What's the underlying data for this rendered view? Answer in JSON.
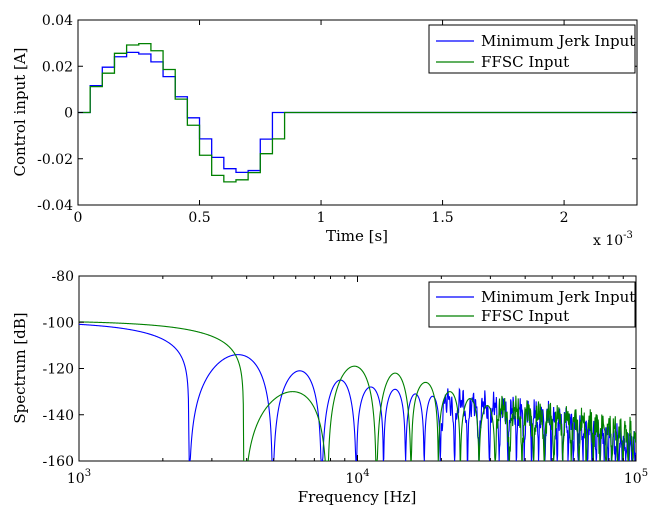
{
  "chart_data": [
    {
      "type": "line",
      "title": "",
      "xlabel": "Time [s]",
      "ylabel": "Control input [A]",
      "x_multiplier_label": "x 10",
      "x_multiplier_exponent": "-3",
      "xlim": [
        0,
        2.3
      ],
      "ylim": [
        -0.04,
        0.04
      ],
      "xticks": [
        0,
        0.5,
        1,
        1.5,
        2
      ],
      "xtick_labels": [
        "0",
        "0.5",
        "1",
        "1.5",
        "2"
      ],
      "yticks": [
        -0.04,
        -0.02,
        0,
        0.02,
        0.04
      ],
      "ytick_labels": [
        "-0.04",
        "-0.02",
        "0",
        "0.02",
        "0.04"
      ],
      "grid": false,
      "legend_position": "top-right",
      "step_width": 0.05,
      "series": [
        {
          "name": "Minimum Jerk Input",
          "color": "#0000ff",
          "step_values": [
            0.0,
            0.0116,
            0.0196,
            0.0241,
            0.026,
            0.0253,
            0.0219,
            0.0155,
            0.0068,
            -0.0023,
            -0.0114,
            -0.0194,
            -0.0243,
            -0.0259,
            -0.0251,
            -0.0115,
            0.0
          ],
          "end_x": 2.3
        },
        {
          "name": "FFSC Input",
          "color": "#008000",
          "step_values": [
            0.0,
            0.0112,
            0.017,
            0.0256,
            0.0292,
            0.0298,
            0.0267,
            0.0186,
            0.0058,
            -0.0055,
            -0.0185,
            -0.0272,
            -0.03,
            -0.0291,
            -0.026,
            -0.0178,
            -0.0114,
            0.0
          ],
          "end_x": 2.3
        }
      ]
    },
    {
      "type": "line",
      "title": "",
      "xlabel": "Frequency [Hz]",
      "ylabel": "Spectrum [dB]",
      "xscale": "log",
      "xlim": [
        1000,
        100000
      ],
      "ylim": [
        -160,
        -80
      ],
      "xticks": [
        1000,
        10000,
        100000
      ],
      "xtick_labels": [
        {
          "base": "10",
          "exponent": "3"
        },
        {
          "base": "10",
          "exponent": "4"
        },
        {
          "base": "10",
          "exponent": "5"
        }
      ],
      "yticks": [
        -160,
        -140,
        -120,
        -100,
        -80
      ],
      "ytick_labels": [
        "-160",
        "-140",
        "-120",
        "-100",
        "-80"
      ],
      "grid": false,
      "legend_position": "top-right",
      "series": [
        {
          "name": "Minimum Jerk Input",
          "color": "#0000ff",
          "base_level_db": -99.5,
          "first_null_hz": 2480,
          "lobe_peaks_db": [
            -114,
            -121,
            -125,
            -128,
            -129,
            -131,
            -132,
            -133
          ]
        },
        {
          "name": "FFSC Input",
          "color": "#008000",
          "base_level_db": -99.3,
          "first_null_hz": 3900,
          "lobe_peaks_db": [
            -130,
            -119,
            -122,
            -126,
            -130,
            -133,
            -136
          ]
        }
      ]
    }
  ]
}
